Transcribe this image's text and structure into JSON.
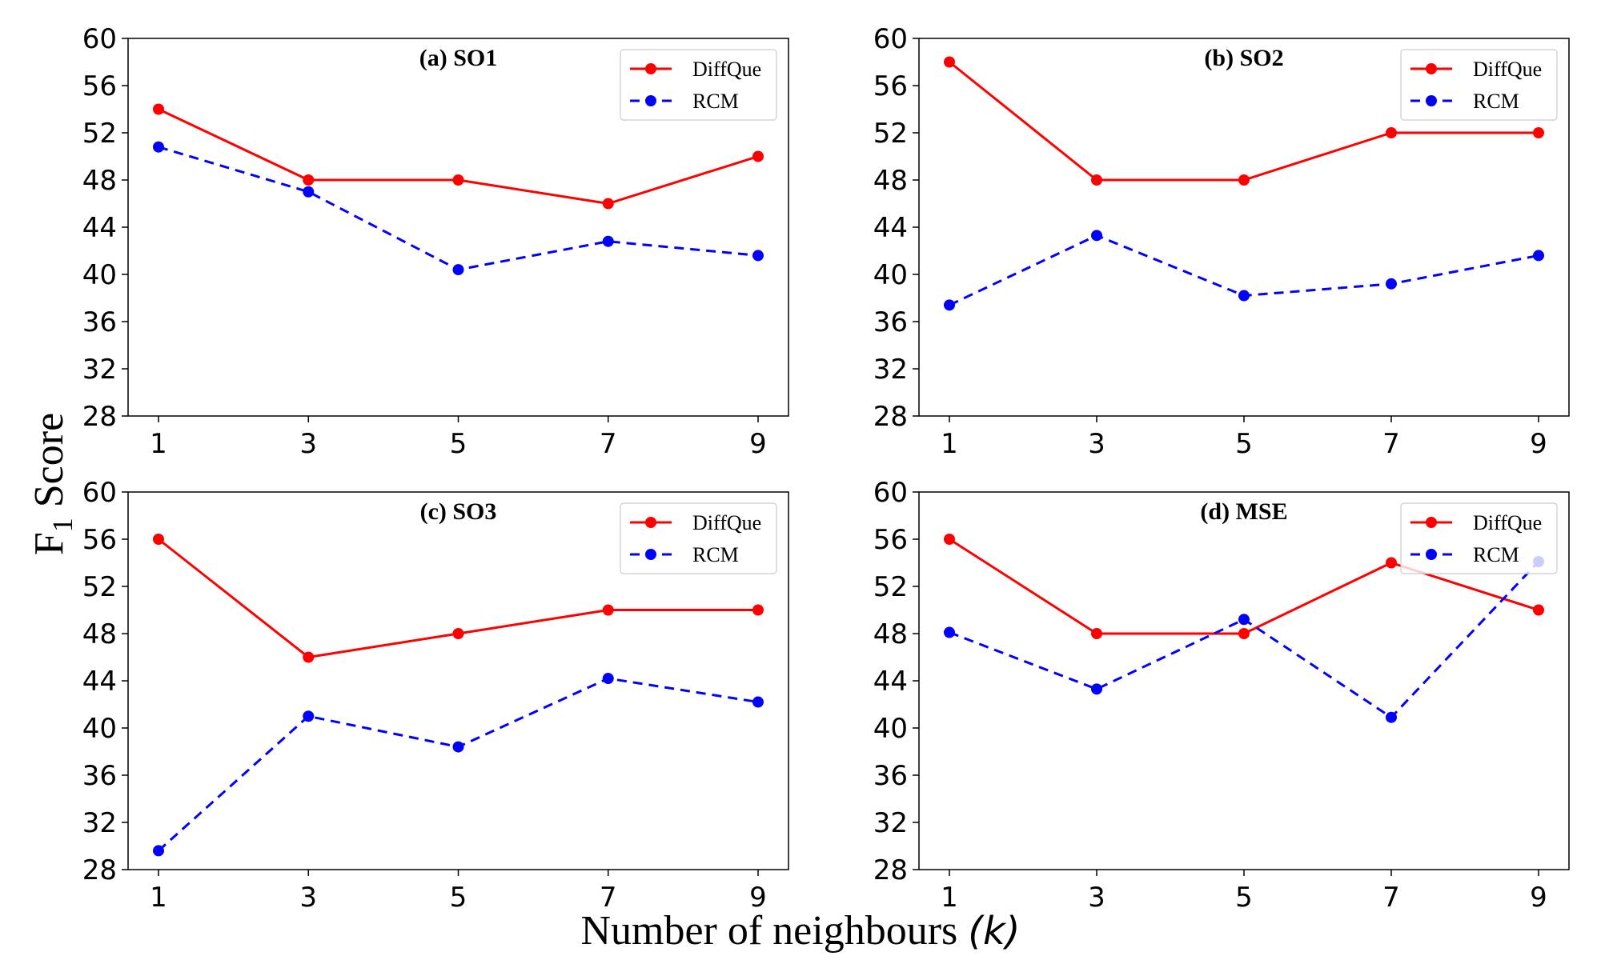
{
  "chart_data": {
    "type": "line",
    "ylabel": {
      "main": "F",
      "subscript": "1",
      "rest": " Score"
    },
    "xlabel": {
      "text": "Number of neighbours ",
      "open_paren": "(",
      "var": "k",
      "close_paren": ")"
    },
    "x": [
      1,
      3,
      5,
      7,
      9
    ],
    "x_tick_labels": [
      "1",
      "3",
      "5",
      "7",
      "9"
    ],
    "ylim": [
      28,
      60
    ],
    "y_ticks": [
      28,
      32,
      36,
      40,
      44,
      48,
      52,
      56,
      60
    ],
    "y_tick_labels": [
      "28",
      "32",
      "36",
      "40",
      "44",
      "48",
      "52",
      "56",
      "60"
    ],
    "legend_placement": "top-right",
    "colors": {
      "DiffQue": "#ff0000",
      "RCM": "#0000ff"
    },
    "panels": [
      {
        "title": "(a) SO1",
        "series": [
          {
            "name": "DiffQue",
            "style": "solid",
            "values": [
              54,
              48,
              48,
              46,
              50
            ]
          },
          {
            "name": "RCM",
            "style": "dashed",
            "values": [
              50.8,
              47,
              40.4,
              42.8,
              41.6
            ]
          }
        ]
      },
      {
        "title": "(b) SO2",
        "series": [
          {
            "name": "DiffQue",
            "style": "solid",
            "values": [
              58,
              48,
              48,
              52,
              52
            ]
          },
          {
            "name": "RCM",
            "style": "dashed",
            "values": [
              37.4,
              43.3,
              38.2,
              39.2,
              41.6
            ]
          }
        ]
      },
      {
        "title": "(c) SO3",
        "series": [
          {
            "name": "DiffQue",
            "style": "solid",
            "values": [
              56,
              46,
              48,
              50,
              50
            ]
          },
          {
            "name": "RCM",
            "style": "dashed",
            "values": [
              29.6,
              41,
              38.4,
              44.2,
              42.2
            ]
          }
        ]
      },
      {
        "title": "(d) MSE",
        "series": [
          {
            "name": "DiffQue",
            "style": "solid",
            "values": [
              56,
              48,
              48,
              54,
              50
            ]
          },
          {
            "name": "RCM",
            "style": "dashed",
            "values": [
              48.1,
              43.3,
              49.2,
              40.9,
              54.1
            ]
          }
        ]
      }
    ]
  }
}
